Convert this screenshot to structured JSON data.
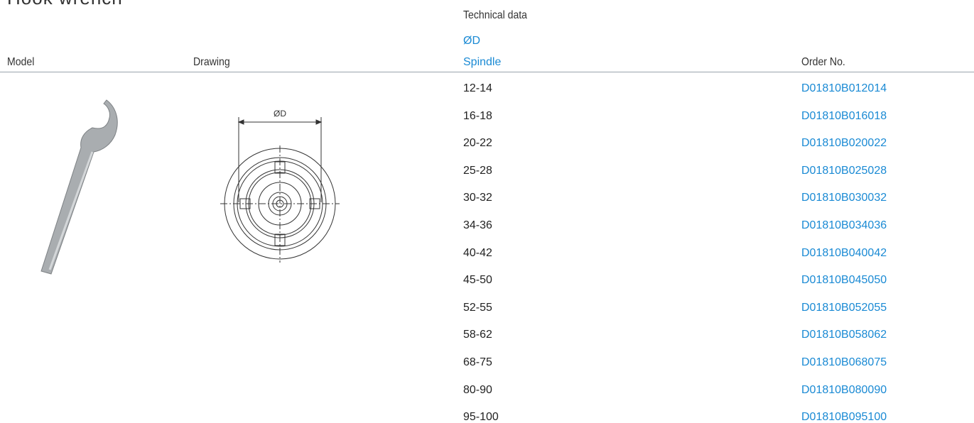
{
  "header": {
    "title": "Hook wrench"
  },
  "table": {
    "columns": {
      "model": "Model",
      "drawing": "Drawing",
      "technical": "Technical data",
      "order": "Order No."
    },
    "subheader": [
      "ØD",
      "Spindle"
    ],
    "rows": [
      [
        "12-14",
        "D01810B012014"
      ],
      [
        "16-18",
        "D01810B016018"
      ],
      [
        "20-22",
        "D01810B020022"
      ],
      [
        "25-28",
        "D01810B025028"
      ],
      [
        "30-32",
        "D01810B030032"
      ],
      [
        "34-36",
        "D01810B034036"
      ],
      [
        "40-42",
        "D01810B040042"
      ],
      [
        "45-50",
        "D01810B045050"
      ],
      [
        "52-55",
        "D01810B052055"
      ],
      [
        "58-62",
        "D01810B058062"
      ],
      [
        "68-75",
        "D01810B068075"
      ],
      [
        "80-90",
        "D01810B080090"
      ],
      [
        "95-100",
        "D01810B095100"
      ]
    ]
  },
  "drawing": {
    "dimension_label": "ØD"
  }
}
